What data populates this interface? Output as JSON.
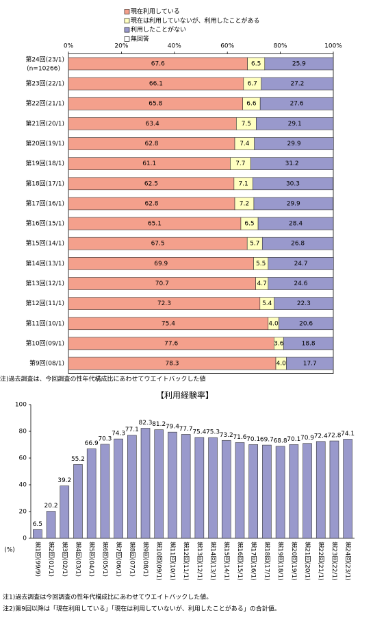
{
  "chart_data": [
    {
      "type": "stacked-barh",
      "categories": [
        "第24回(23/1)",
        "第23回(22/1)",
        "第22回(21/1)",
        "第21回(20/1)",
        "第20回(19/1)",
        "第19回(18/1)",
        "第18回(17/1)",
        "第17回(16/1)",
        "第16回(15/1)",
        "第15回(14/1)",
        "第14回(13/1)",
        "第13回(12/1)",
        "第12回(11/1)",
        "第11回(10/1)",
        "第10回(09/1)",
        "第9回(08/1)"
      ],
      "sample_note": "(n=10266)",
      "series": [
        {
          "name": "現在利用している",
          "color": "#f4a08c",
          "values": [
            67.6,
            66.1,
            65.8,
            63.4,
            62.8,
            61.1,
            62.5,
            62.8,
            65.1,
            67.5,
            69.9,
            70.7,
            72.3,
            75.4,
            77.6,
            78.3
          ]
        },
        {
          "name": "現在は利用していないが、利用したことがある",
          "color": "#ffffc0",
          "values": [
            6.5,
            6.7,
            6.6,
            7.5,
            7.4,
            7.7,
            7.1,
            7.2,
            6.5,
            5.7,
            5.5,
            4.7,
            5.4,
            4.0,
            3.6,
            4.0
          ],
          "value_labels": [
            "6.5",
            "6.7",
            "6.6",
            "7.5",
            "7.4",
            "7.7",
            "7.1",
            "7.2",
            "6.5",
            "5.7",
            "5.5",
            "4.7",
            "5.4",
            "4.0",
            "3.6",
            "4.0"
          ]
        },
        {
          "name": "利用したことがない",
          "color": "#9999cc",
          "values": [
            25.9,
            27.2,
            27.6,
            29.1,
            29.9,
            31.2,
            30.3,
            29.9,
            28.4,
            26.8,
            24.7,
            24.6,
            22.3,
            20.6,
            18.8,
            17.7
          ]
        },
        {
          "name": "無回答",
          "color": "#ffffff",
          "values": [
            0,
            0,
            0,
            0,
            0,
            0,
            0,
            0,
            0,
            0,
            0,
            0,
            0,
            0,
            0,
            0
          ]
        }
      ],
      "xlim": [
        0,
        100
      ],
      "xticks": [
        {
          "value": 0,
          "label": "0%"
        },
        {
          "value": 20,
          "label": "20%"
        },
        {
          "value": 40,
          "label": "40%"
        },
        {
          "value": 60,
          "label": "60%"
        },
        {
          "value": 80,
          "label": "80%"
        },
        {
          "value": 100,
          "label": "100%"
        }
      ],
      "note": "注)過去調査は、今回調査の性年代構成比にあわせてウエイトバックした値"
    },
    {
      "type": "bar",
      "title": "【利用経験率】",
      "y_unit": "(%)",
      "categories": [
        "第1回(99/9)",
        "第2回(01/1)",
        "第3回(02/1)",
        "第4回(03/1)",
        "第5回(04/1)",
        "第6回(05/1)",
        "第7回(06/1)",
        "第8回(07/1)",
        "第9回(08/1)",
        "第10回(09/1)",
        "第11回(10/1)",
        "第12回(11/1)",
        "第13回(12/1)",
        "第14回(13/1)",
        "第15回(14/1)",
        "第16回(15/1)",
        "第17回(16/1)",
        "第18回(17/1)",
        "第19回(18/1)",
        "第20回(19/1)",
        "第21回(20/1)",
        "第22回(21/1)",
        "第23回(22/1)",
        "第24回(23/1)"
      ],
      "values": [
        6.5,
        20.2,
        39.2,
        55.2,
        66.9,
        70.3,
        74.3,
        77.1,
        82.3,
        81.2,
        79.4,
        77.7,
        75.4,
        75.3,
        73.2,
        71.6,
        70.1,
        69.7,
        68.8,
        70.1,
        70.9,
        72.4,
        72.8,
        74.1
      ],
      "color": "#9999cc",
      "ylim": [
        0,
        100
      ],
      "yticks": [
        0,
        20,
        40,
        60,
        80,
        100
      ],
      "notes": [
        "注1)過去調査は今回調査の性年代構成比にあわせてウエイトバックした値。",
        "注2)第9回以降は「現在利用している」「現在は利用していないが、利用したことがある」の合計値。"
      ]
    }
  ]
}
